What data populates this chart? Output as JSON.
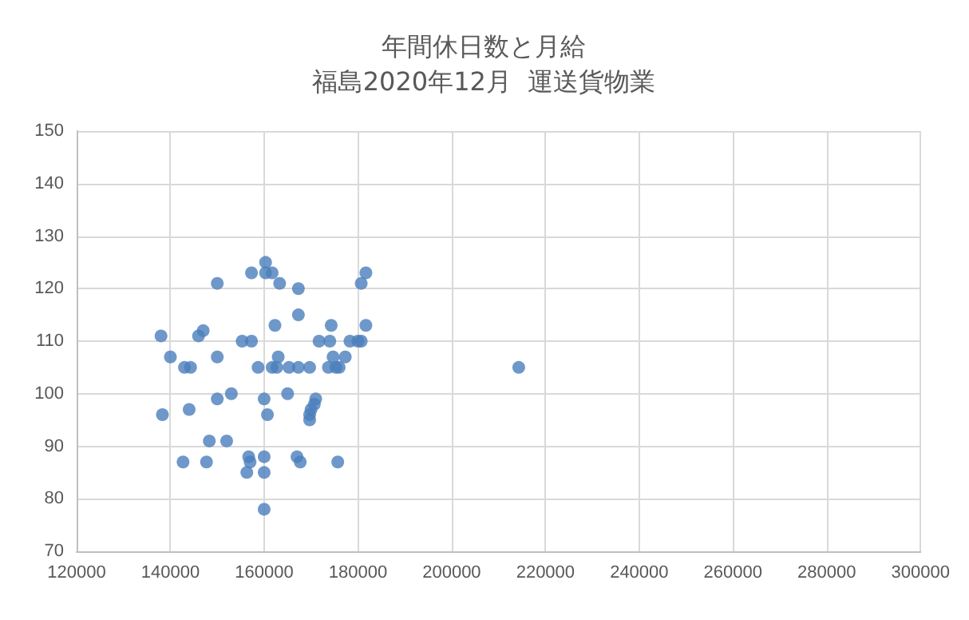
{
  "chart_data": {
    "type": "scatter",
    "title": "年間休日数と月給",
    "subtitle": "福島2020年12月  運送貨物業",
    "x": [
      138000,
      138300,
      140000,
      143000,
      144300,
      142700,
      144000,
      146000,
      147000,
      147700,
      148300,
      150000,
      150000,
      150000,
      152000,
      153000,
      155300,
      157300,
      156700,
      157000,
      156300,
      157300,
      160000,
      160000,
      160000,
      160000,
      160300,
      160300,
      161700,
      162300,
      163300,
      161700,
      160700,
      158700,
      162700,
      163000,
      165300,
      167300,
      165000,
      167000,
      167700,
      167300,
      167300,
      169700,
      169700,
      169700,
      170000,
      170700,
      171000,
      171700,
      174300,
      174000,
      174700,
      173700,
      175300,
      176000,
      175700,
      177300,
      178300,
      180000,
      180700,
      180700,
      181700,
      181700,
      214300
    ],
    "series": [
      {
        "color": "#4a7ebb",
        "values": [
          111,
          96,
          107,
          105,
          105,
          87,
          97,
          111,
          112,
          87,
          91,
          121,
          107,
          99,
          91,
          100,
          110,
          110,
          88,
          87,
          85,
          123,
          78,
          88,
          85,
          99,
          125,
          123,
          123,
          113,
          121,
          105,
          96,
          105,
          105,
          107,
          105,
          105,
          100,
          88,
          87,
          115,
          120,
          105,
          96,
          95,
          97,
          98,
          99,
          110,
          113,
          110,
          107,
          105,
          105,
          105,
          87,
          107,
          110,
          110,
          110,
          121,
          123,
          113,
          105
        ]
      }
    ],
    "xlim": [
      120000,
      300000
    ],
    "xticks": [
      120000,
      140000,
      160000,
      180000,
      200000,
      220000,
      240000,
      260000,
      280000,
      300000
    ],
    "ylim": [
      70,
      150
    ],
    "yticks": [
      70,
      80,
      90,
      100,
      110,
      120,
      130,
      140,
      150
    ],
    "grid": true,
    "marker": "circle"
  }
}
